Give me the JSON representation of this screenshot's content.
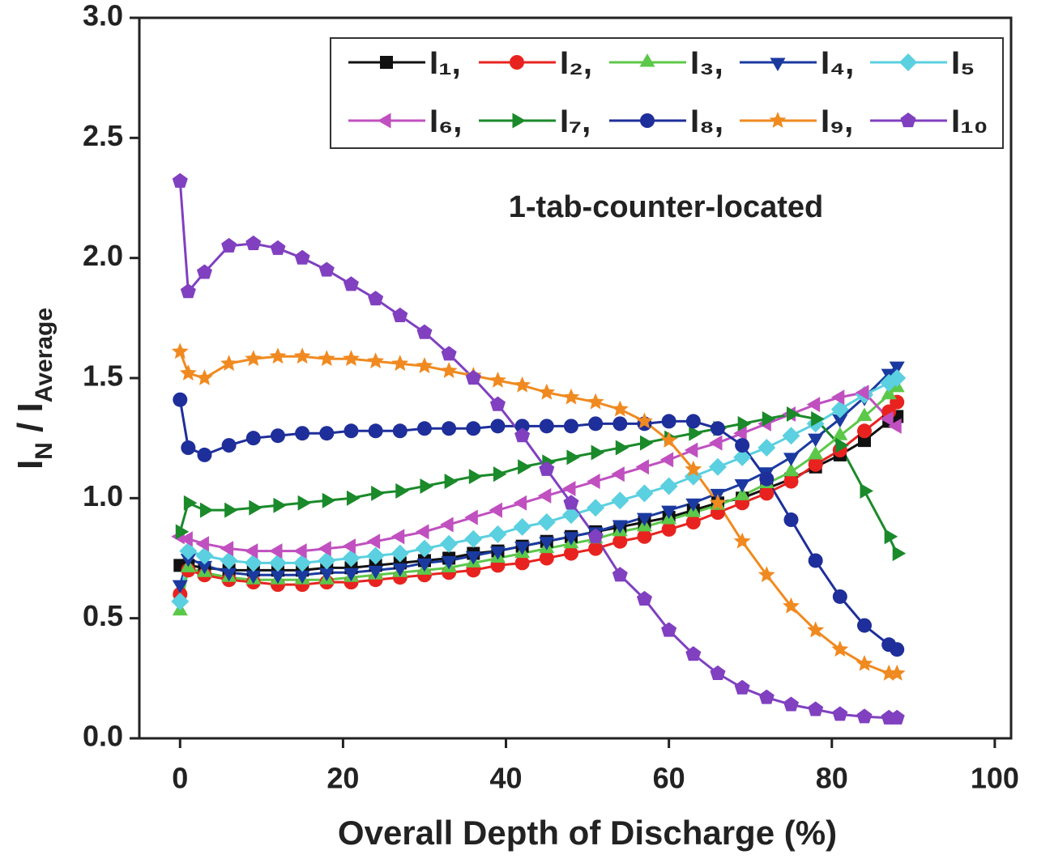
{
  "chart_data": {
    "type": "line",
    "annotation": "1-tab-counter-located",
    "xlabel": "Overall Depth of Discharge (%)",
    "ylabel": [
      "I",
      "N",
      " / I",
      "Average"
    ],
    "x": [
      0,
      1,
      3,
      6,
      9,
      12,
      15,
      18,
      21,
      24,
      27,
      30,
      33,
      36,
      39,
      42,
      45,
      48,
      51,
      54,
      57,
      60,
      63,
      66,
      69,
      72,
      75,
      78,
      81,
      84,
      87,
      88
    ],
    "xlim": [
      -5,
      102
    ],
    "xticks": [
      0,
      20,
      40,
      60,
      80,
      100
    ],
    "ylim": [
      0,
      3
    ],
    "yticks": [
      {
        "value": 0,
        "label": "0.0"
      },
      0.5,
      {
        "value": 1,
        "label": "1.0"
      },
      1.5,
      {
        "value": 2,
        "label": "2.0"
      },
      2.5,
      {
        "value": 3,
        "label": "3.0"
      }
    ],
    "legend": "upper right",
    "series": [
      {
        "name": "I₁,",
        "color": "#111111",
        "marker": "square",
        "values": [
          0.72,
          0.72,
          0.71,
          0.7,
          0.7,
          0.7,
          0.7,
          0.71,
          0.71,
          0.72,
          0.73,
          0.74,
          0.75,
          0.77,
          0.78,
          0.8,
          0.82,
          0.84,
          0.86,
          0.88,
          0.9,
          0.92,
          0.95,
          0.98,
          1.0,
          1.04,
          1.08,
          1.13,
          1.18,
          1.24,
          1.32,
          1.34
        ]
      },
      {
        "name": "I₂,",
        "color": "#e8231f",
        "marker": "circle",
        "values": [
          0.6,
          0.7,
          0.68,
          0.66,
          0.65,
          0.64,
          0.64,
          0.65,
          0.65,
          0.66,
          0.67,
          0.68,
          0.69,
          0.7,
          0.72,
          0.73,
          0.75,
          0.77,
          0.79,
          0.82,
          0.84,
          0.87,
          0.9,
          0.94,
          0.98,
          1.02,
          1.07,
          1.14,
          1.2,
          1.28,
          1.36,
          1.4
        ]
      },
      {
        "name": "I₃,",
        "color": "#5cc84a",
        "marker": "triangle-up",
        "values": [
          0.53,
          0.71,
          0.69,
          0.67,
          0.66,
          0.66,
          0.66,
          0.66,
          0.67,
          0.68,
          0.69,
          0.7,
          0.71,
          0.73,
          0.75,
          0.77,
          0.79,
          0.81,
          0.83,
          0.86,
          0.88,
          0.91,
          0.94,
          0.97,
          1.01,
          1.06,
          1.11,
          1.18,
          1.26,
          1.34,
          1.43,
          1.46
        ]
      },
      {
        "name": "I₄,",
        "color": "#1a3aa0",
        "marker": "triangle-down",
        "values": [
          0.64,
          0.75,
          0.72,
          0.69,
          0.68,
          0.68,
          0.68,
          0.69,
          0.69,
          0.7,
          0.71,
          0.73,
          0.74,
          0.76,
          0.78,
          0.8,
          0.82,
          0.84,
          0.86,
          0.89,
          0.92,
          0.95,
          0.98,
          1.02,
          1.06,
          1.11,
          1.17,
          1.25,
          1.33,
          1.42,
          1.52,
          1.55
        ]
      },
      {
        "name": "I₅",
        "color": "#5ad0e0",
        "marker": "diamond",
        "values": [
          0.57,
          0.78,
          0.76,
          0.74,
          0.73,
          0.73,
          0.73,
          0.74,
          0.75,
          0.76,
          0.77,
          0.79,
          0.81,
          0.83,
          0.85,
          0.88,
          0.9,
          0.93,
          0.96,
          0.99,
          1.02,
          1.05,
          1.09,
          1.13,
          1.17,
          1.21,
          1.26,
          1.31,
          1.37,
          1.43,
          1.48,
          1.5
        ]
      },
      {
        "name": "I₆,",
        "color": "#c050c0",
        "marker": "triangle-left",
        "values": [
          0.84,
          0.83,
          0.81,
          0.79,
          0.78,
          0.78,
          0.78,
          0.79,
          0.8,
          0.82,
          0.84,
          0.86,
          0.89,
          0.92,
          0.95,
          0.98,
          1.01,
          1.04,
          1.07,
          1.1,
          1.13,
          1.16,
          1.2,
          1.23,
          1.27,
          1.31,
          1.35,
          1.39,
          1.42,
          1.44,
          1.33,
          1.3
        ]
      },
      {
        "name": "I₇,",
        "color": "#1a8a2a",
        "marker": "triangle-right",
        "values": [
          0.86,
          0.98,
          0.95,
          0.95,
          0.96,
          0.97,
          0.98,
          0.99,
          1.0,
          1.02,
          1.03,
          1.05,
          1.07,
          1.09,
          1.1,
          1.13,
          1.15,
          1.17,
          1.19,
          1.21,
          1.23,
          1.25,
          1.27,
          1.29,
          1.31,
          1.33,
          1.35,
          1.33,
          1.22,
          1.03,
          0.84,
          0.77
        ]
      },
      {
        "name": "I₈,",
        "color": "#1e2e9a",
        "marker": "circle",
        "values": [
          1.41,
          1.21,
          1.18,
          1.22,
          1.25,
          1.26,
          1.27,
          1.27,
          1.28,
          1.28,
          1.28,
          1.29,
          1.29,
          1.29,
          1.3,
          1.3,
          1.3,
          1.3,
          1.31,
          1.31,
          1.31,
          1.32,
          1.32,
          1.29,
          1.22,
          1.08,
          0.91,
          0.74,
          0.59,
          0.47,
          0.39,
          0.37
        ]
      },
      {
        "name": "I₉,",
        "color": "#f08a20",
        "marker": "star",
        "values": [
          1.61,
          1.52,
          1.5,
          1.56,
          1.58,
          1.59,
          1.59,
          1.58,
          1.58,
          1.57,
          1.56,
          1.55,
          1.53,
          1.51,
          1.49,
          1.47,
          1.44,
          1.42,
          1.4,
          1.37,
          1.32,
          1.24,
          1.12,
          0.98,
          0.82,
          0.68,
          0.55,
          0.45,
          0.37,
          0.31,
          0.27,
          0.27
        ]
      },
      {
        "name": "I₁₀",
        "color": "#8040c0",
        "marker": "pentagon",
        "values": [
          2.32,
          1.86,
          1.94,
          2.05,
          2.06,
          2.04,
          2.0,
          1.95,
          1.89,
          1.83,
          1.76,
          1.69,
          1.6,
          1.5,
          1.39,
          1.26,
          1.12,
          0.98,
          0.84,
          0.68,
          0.58,
          0.45,
          0.35,
          0.27,
          0.21,
          0.17,
          0.14,
          0.12,
          0.1,
          0.09,
          0.085,
          0.085
        ]
      }
    ]
  }
}
